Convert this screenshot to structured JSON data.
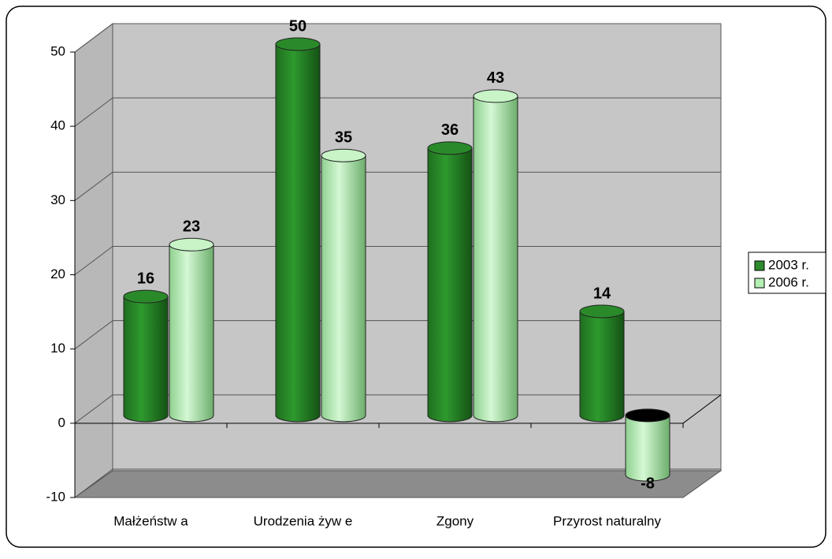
{
  "chart_data": {
    "type": "bar",
    "categories": [
      "Małżeństw a",
      "Urodzenia żyw e",
      "Zgony",
      "Przyrost naturalny"
    ],
    "series": [
      {
        "name": "2003 r.",
        "color": "#2e8b2e",
        "values": [
          16,
          50,
          36,
          14
        ]
      },
      {
        "name": "2006 r.",
        "color": "#b4efb4",
        "values": [
          23,
          35,
          43,
          -8
        ]
      }
    ],
    "ylim": [
      -10,
      50
    ],
    "yticks": [
      -10,
      0,
      10,
      20,
      30,
      40,
      50
    ],
    "grid": true,
    "legend": "right"
  }
}
